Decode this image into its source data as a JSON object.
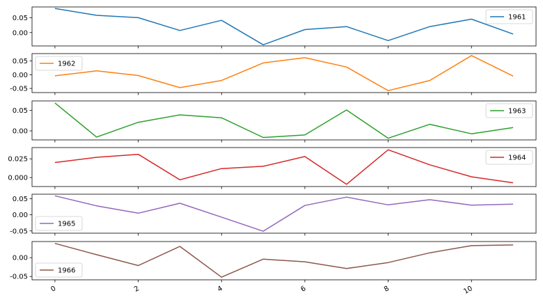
{
  "chart_data": [
    {
      "type": "line",
      "x": [
        0,
        1,
        2,
        3,
        4,
        5,
        6,
        7,
        8,
        9,
        10,
        11
      ],
      "series": [
        {
          "name": "1961",
          "color": "#1f77b4",
          "values": [
            0.081,
            0.058,
            0.05,
            0.007,
            0.041,
            -0.041,
            0.01,
            0.02,
            -0.027,
            0.02,
            0.045,
            -0.005
          ]
        }
      ],
      "yticks": [
        0.0,
        0.05
      ],
      "ytick_labels": [
        "0.00",
        "0.05"
      ],
      "ylim": [
        -0.045,
        0.086
      ],
      "legend": "upper right",
      "grid": false
    },
    {
      "type": "line",
      "x": [
        0,
        1,
        2,
        3,
        4,
        5,
        6,
        7,
        8,
        9,
        10,
        11
      ],
      "series": [
        {
          "name": "1962",
          "color": "#ff7f0e",
          "values": [
            -0.004,
            0.014,
            -0.003,
            -0.047,
            -0.021,
            0.043,
            0.062,
            0.028,
            -0.058,
            -0.021,
            0.07,
            -0.005
          ]
        }
      ],
      "yticks": [
        -0.05,
        0.0,
        0.05
      ],
      "ytick_labels": [
        "-0.05",
        "0.00",
        "0.05"
      ],
      "ylim": [
        -0.065,
        0.077
      ],
      "legend": "upper left",
      "grid": false
    },
    {
      "type": "line",
      "x": [
        0,
        1,
        2,
        3,
        4,
        5,
        6,
        7,
        8,
        9,
        10,
        11
      ],
      "series": [
        {
          "name": "1963",
          "color": "#2ca02c",
          "values": [
            0.068,
            -0.015,
            0.021,
            0.039,
            0.032,
            -0.016,
            -0.01,
            0.051,
            -0.018,
            0.016,
            -0.007,
            0.008
          ]
        }
      ],
      "yticks": [
        0.0,
        0.05
      ],
      "ytick_labels": [
        "0.00",
        "0.05"
      ],
      "ylim": [
        -0.022,
        0.073
      ],
      "legend": "upper right",
      "grid": false
    },
    {
      "type": "line",
      "x": [
        0,
        1,
        2,
        3,
        4,
        5,
        6,
        7,
        8,
        9,
        10,
        11
      ],
      "series": [
        {
          "name": "1964",
          "color": "#d62728",
          "values": [
            0.02,
            0.027,
            0.031,
            -0.003,
            0.012,
            0.015,
            0.028,
            -0.009,
            0.037,
            0.017,
            0.001,
            -0.007
          ]
        }
      ],
      "yticks": [
        0.0,
        0.025
      ],
      "ytick_labels": [
        "0.000",
        "0.025"
      ],
      "ylim": [
        -0.012,
        0.04
      ],
      "legend": "upper right",
      "grid": false
    },
    {
      "type": "line",
      "x": [
        0,
        1,
        2,
        3,
        4,
        5,
        6,
        7,
        8,
        9,
        10,
        11
      ],
      "series": [
        {
          "name": "1965",
          "color": "#9467bd",
          "values": [
            0.059,
            0.028,
            0.005,
            0.036,
            -0.007,
            -0.051,
            0.029,
            0.055,
            0.031,
            0.047,
            0.03,
            0.033
          ]
        }
      ],
      "yticks": [
        -0.05,
        0.0,
        0.05
      ],
      "ytick_labels": [
        "-0.05",
        "0.00",
        "0.05"
      ],
      "ylim": [
        -0.057,
        0.064
      ],
      "legend": "lower left",
      "grid": false
    },
    {
      "type": "line",
      "x": [
        0,
        1,
        2,
        3,
        4,
        5,
        6,
        7,
        8,
        9,
        10,
        11
      ],
      "series": [
        {
          "name": "1966",
          "color": "#8c564b",
          "values": [
            0.038,
            0.008,
            -0.021,
            0.03,
            -0.052,
            -0.004,
            -0.011,
            -0.029,
            -0.013,
            0.013,
            0.032,
            0.034
          ]
        }
      ],
      "yticks": [
        -0.05,
        0.0
      ],
      "ytick_labels": [
        "-0.05",
        "0.00"
      ],
      "ylim": [
        -0.059,
        0.043
      ],
      "legend": "lower left",
      "grid": false
    }
  ],
  "x_axis": {
    "xlim": [
      -0.55,
      11.55
    ],
    "ticks": [
      0,
      2,
      4,
      6,
      8,
      10
    ],
    "tick_labels": [
      "0",
      "2",
      "4",
      "6",
      "8",
      "10"
    ],
    "label_rotation_deg": 30
  }
}
